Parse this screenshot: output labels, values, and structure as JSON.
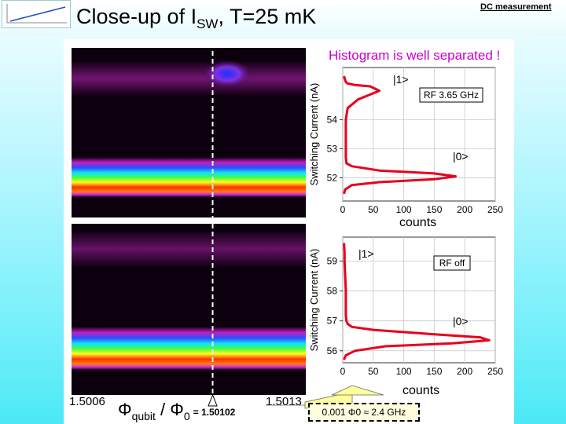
{
  "slide": {
    "title_prefix": "Close-up of I",
    "title_sub": "SW",
    "title_suffix": ", T=25 mK",
    "tag": "DC measurement",
    "subtitle": "Histogram is well separated !",
    "x_min_label": "1.5006",
    "x_max_label": "1.5013",
    "formula_phi": "Φ",
    "formula_qubit": "qubit",
    "formula_mid": " / Φ",
    "formula_zero": "0",
    "formula_value": "= 1.50102",
    "scale_label": "0.001 Φ0 ≈ 2.4 GHz",
    "counts_label_top": "counts",
    "counts_label_bottom": "counts",
    "colors": {
      "curve": "#e8001c",
      "subtitle": "#cc00cc",
      "marker_fill": "#ffff99"
    }
  },
  "chart_data": [
    {
      "type": "line",
      "title": "",
      "xlabel": "counts",
      "ylabel": "Switching Current (nA)",
      "xlim": [
        0,
        250
      ],
      "ylim": [
        51.2,
        55.8
      ],
      "xticks": [
        "0",
        "50",
        "100",
        "150",
        "200",
        "250"
      ],
      "yticks": [
        "52",
        "53",
        "54"
      ],
      "grid": true,
      "annotations": [
        "|1>",
        "|0>",
        "RF 3.65 GHz"
      ],
      "series": [
        {
          "x": [
            2,
            5,
            8,
            20,
            45,
            60,
            25,
            8,
            5,
            5,
            5,
            5,
            6,
            15,
            60,
            150,
            185,
            150,
            60,
            15,
            4,
            2
          ],
          "y": [
            55.5,
            55.3,
            55.25,
            55.2,
            55.15,
            55.0,
            54.7,
            54.4,
            54.0,
            53.5,
            53.0,
            52.7,
            52.5,
            52.4,
            52.25,
            52.15,
            52.05,
            51.95,
            51.85,
            51.75,
            51.6,
            51.45
          ]
        }
      ]
    },
    {
      "type": "line",
      "title": "",
      "xlabel": "counts",
      "ylabel": "Switching Current (nA)",
      "xlim": [
        0,
        250
      ],
      "ylim": [
        55.6,
        59.8
      ],
      "xticks": [
        "0",
        "50",
        "100",
        "150",
        "200",
        "250"
      ],
      "yticks": [
        "56",
        "57",
        "58",
        "59"
      ],
      "grid": true,
      "annotations": [
        "|1>",
        "|0>",
        "RF off"
      ],
      "series": [
        {
          "x": [
            2,
            3,
            3,
            4,
            5,
            5,
            5,
            6,
            8,
            15,
            50,
            150,
            225,
            240,
            180,
            70,
            20,
            5,
            2
          ],
          "y": [
            59.6,
            59.3,
            59.0,
            58.5,
            58.0,
            57.5,
            57.2,
            57.0,
            56.9,
            56.8,
            56.7,
            56.55,
            56.45,
            56.35,
            56.25,
            56.15,
            56.0,
            55.85,
            55.7
          ]
        }
      ]
    }
  ]
}
